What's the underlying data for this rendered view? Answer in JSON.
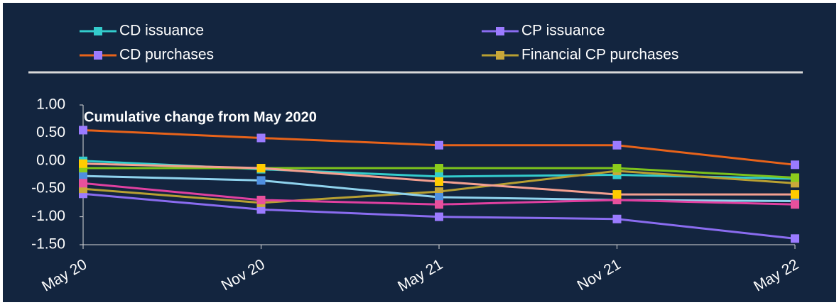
{
  "chart_data": {
    "type": "line",
    "title": "Cumulative change from May 2020",
    "categories": [
      "May 20",
      "Nov 20",
      "May 21",
      "Nov 21",
      "May 22"
    ],
    "ylim": [
      -1.5,
      1.0
    ],
    "yticks": [
      {
        "value": 1.0,
        "label": "1.00"
      },
      {
        "value": 0.5,
        "label": "0.50"
      },
      {
        "value": 0,
        "label": "0.00"
      },
      {
        "value": -0.5,
        "label": "-0.50"
      },
      {
        "value": -1.0,
        "label": "-1.00"
      },
      {
        "value": -1.5,
        "label": "-1.50"
      }
    ],
    "series": [
      {
        "name": "CD issuance",
        "color": "#33cccc",
        "marker_color": "#33cccc",
        "values": [
          0.0,
          -0.15,
          -0.28,
          -0.25,
          -0.32
        ]
      },
      {
        "name": "CP issuance",
        "color": "#8a6cf0",
        "marker_color": "#9b7bff",
        "values": [
          -0.59,
          -0.87,
          -1.0,
          -1.04,
          -1.39
        ]
      },
      {
        "name": "CD purchases",
        "color": "#e8631a",
        "marker_color": "#9b7bff",
        "values": [
          0.55,
          0.41,
          0.28,
          0.28,
          -0.07
        ]
      },
      {
        "name": "Financial CP purchases",
        "color": "#b8a032",
        "marker_color": "#c9a83a",
        "values": [
          -0.5,
          -0.75,
          -0.55,
          -0.18,
          -0.4
        ]
      },
      {
        "color": "#8fd3ee",
        "marker_color": "#4f8fe0",
        "values": [
          -0.27,
          -0.35,
          -0.65,
          -0.7,
          -0.72
        ]
      },
      {
        "color": "#e040a0",
        "marker_color": "#e8509c",
        "values": [
          -0.4,
          -0.7,
          -0.78,
          -0.7,
          -0.78
        ]
      },
      {
        "color": "#7cc21c",
        "marker_color": "#8ccc1c",
        "values": [
          -0.13,
          -0.13,
          -0.13,
          -0.13,
          -0.3
        ]
      },
      {
        "color": "#f4a090",
        "marker_color": "#ffcc00",
        "values": [
          -0.05,
          -0.13,
          -0.37,
          -0.6,
          -0.6
        ]
      }
    ]
  }
}
